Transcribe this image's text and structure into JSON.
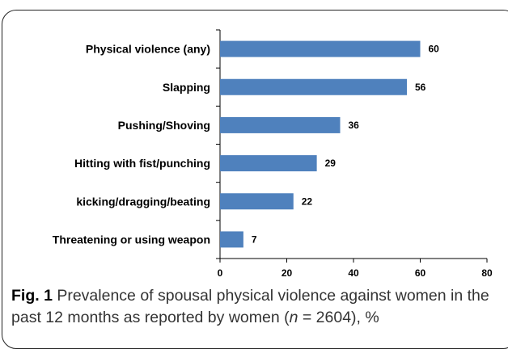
{
  "chart_data": {
    "type": "bar",
    "orientation": "horizontal",
    "categories": [
      "Physical violence (any)",
      "Slapping",
      "Pushing/Shoving",
      "Hitting with fist/punching",
      "kicking/dragging/beating",
      "Threatening or using weapon"
    ],
    "values": [
      60,
      56,
      36,
      29,
      22,
      7
    ],
    "xlim": [
      0,
      80
    ],
    "xticks": [
      "0",
      "20",
      "40",
      "60",
      "80"
    ],
    "bar_color": "#4f81bd",
    "grid": false,
    "legend": "none",
    "data_labels": true
  },
  "caption": {
    "fig_label": "Fig. 1",
    "text_before": " Prevalence of spousal physical violence against women in the past 12 months as reported by women (",
    "n_symbol": "n",
    "text_after": " = 2604), %"
  }
}
